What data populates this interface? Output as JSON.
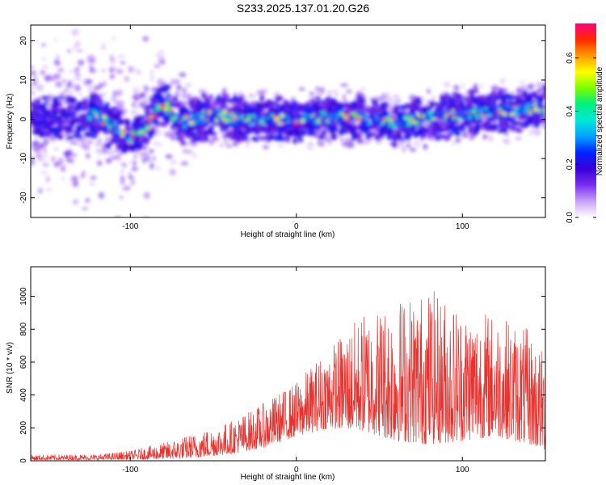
{
  "figure": {
    "title": "S233.2025.137.01.20.G26"
  },
  "chart_data": [
    {
      "type": "heatmap",
      "xlabel": "Height of straight line (km)",
      "ylabel": "Frequency (Hz)",
      "xlim": [
        -160,
        150
      ],
      "ylim": [
        -25,
        24
      ],
      "xticks": [
        -100,
        0,
        100
      ],
      "yticks": [
        -20,
        -10,
        0,
        10,
        20
      ],
      "colorbar": {
        "label": "Normalized spectral amplitude",
        "range": [
          0.0,
          0.73
        ],
        "ticks": [
          0.0,
          0.2,
          0.4,
          0.6
        ],
        "colormap": [
          "#ffffff",
          "#c9a0f7",
          "#7a2ff0",
          "#3a00d8",
          "#0022ff",
          "#00a0ff",
          "#00e8d8",
          "#00f080",
          "#7cfc00",
          "#ffff00",
          "#ff9a00",
          "#ff2a00",
          "#ff0080"
        ]
      },
      "ridge": {
        "center_freq_vs_height": [
          [
            -160,
            0
          ],
          [
            -120,
            1
          ],
          [
            -100,
            -5
          ],
          [
            -90,
            -2
          ],
          [
            -80,
            4
          ],
          [
            -70,
            -1
          ],
          [
            -50,
            1
          ],
          [
            -30,
            0
          ],
          [
            0,
            0
          ],
          [
            30,
            1
          ],
          [
            60,
            -1
          ],
          [
            90,
            1
          ],
          [
            120,
            2
          ],
          [
            150,
            3
          ]
        ],
        "peak_amplitude": 0.7
      }
    },
    {
      "type": "line",
      "xlabel": "Height of straight line (km)",
      "ylabel": "SNR (10 * v/v)",
      "xlim": [
        -160,
        150
      ],
      "ylim": [
        0,
        1180
      ],
      "xticks": [
        -100,
        0,
        100
      ],
      "yticks": [
        0,
        200,
        400,
        600,
        800,
        1000
      ],
      "series": [
        {
          "name": "SNR",
          "color": "#e8322e",
          "envelope": {
            "x": [
              -160,
              -120,
              -100,
              -80,
              -60,
              -40,
              -20,
              0,
              20,
              40,
              60,
              80,
              100,
              120,
              140,
              150
            ],
            "upper": [
              35,
              40,
              60,
              110,
              170,
              240,
              350,
              480,
              700,
              900,
              1000,
              1050,
              950,
              900,
              800,
              650
            ],
            "lower": [
              5,
              5,
              8,
              10,
              20,
              40,
              80,
              150,
              200,
              180,
              120,
              100,
              120,
              150,
              100,
              60
            ]
          }
        }
      ]
    }
  ]
}
